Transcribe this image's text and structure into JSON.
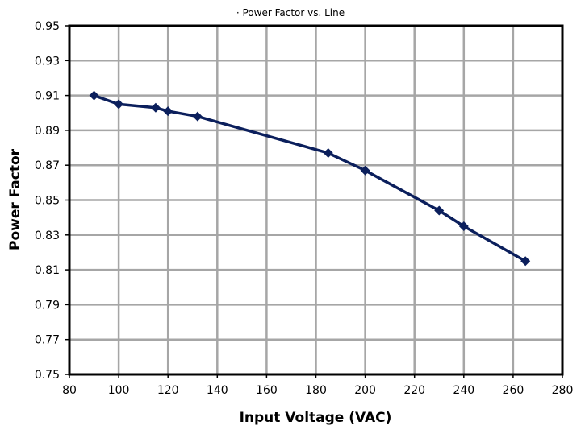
{
  "chart_data": {
    "type": "line",
    "title": "· Power Factor vs. Line",
    "xlabel": "Input Voltage (VAC)",
    "ylabel": "Power Factor",
    "xlim": [
      80,
      280
    ],
    "ylim": [
      0.75,
      0.95
    ],
    "xticks": [
      "80",
      "100",
      "120",
      "140",
      "160",
      "180",
      "200",
      "220",
      "240",
      "260",
      "280"
    ],
    "yticks": [
      "0.75",
      "0.77",
      "0.79",
      "0.81",
      "0.83",
      "0.85",
      "0.87",
      "0.89",
      "0.91",
      "0.93",
      "0.95"
    ],
    "grid": true,
    "series": [
      {
        "name": "Power Factor",
        "color": "#0b1f5c",
        "x": [
          90,
          100,
          115,
          120,
          132,
          185,
          200,
          230,
          240,
          265
        ],
        "y": [
          0.91,
          0.905,
          0.903,
          0.901,
          0.898,
          0.877,
          0.867,
          0.844,
          0.835,
          0.815
        ]
      }
    ]
  }
}
